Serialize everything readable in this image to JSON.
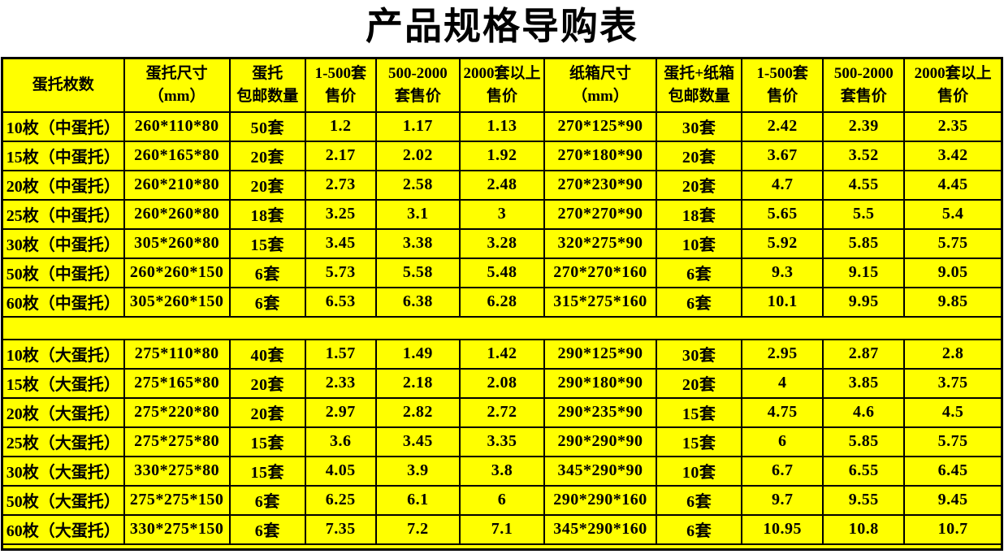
{
  "title": "产品规格导购表",
  "colors": {
    "cell_bg": "#ffff00",
    "border": "#000000",
    "row_label": "#ff0000",
    "text": "#000000",
    "page_bg": "#ffffff"
  },
  "table": {
    "headers": [
      "蛋托枚数",
      "蛋托尺寸\n（mm）",
      "蛋托\n包邮数量",
      "1-500套\n售价",
      "500-2000\n套售价",
      "2000套以上\n售价",
      "纸箱尺寸\n（mm）",
      "蛋托+纸箱\n包邮数量",
      "1-500套\n售价",
      "500-2000\n套售价",
      "2000套以上\n售价"
    ],
    "groups": [
      {
        "rows": [
          [
            "10枚（中蛋托）",
            "260*110*80",
            "50套",
            "1.2",
            "1.17",
            "1.13",
            "270*125*90",
            "30套",
            "2.42",
            "2.39",
            "2.35"
          ],
          [
            "15枚（中蛋托）",
            "260*165*80",
            "20套",
            "2.17",
            "2.02",
            "1.92",
            "270*180*90",
            "20套",
            "3.67",
            "3.52",
            "3.42"
          ],
          [
            "20枚（中蛋托）",
            "260*210*80",
            "20套",
            "2.73",
            "2.58",
            "2.48",
            "270*230*90",
            "20套",
            "4.7",
            "4.55",
            "4.45"
          ],
          [
            "25枚（中蛋托）",
            "260*260*80",
            "18套",
            "3.25",
            "3.1",
            "3",
            "270*270*90",
            "18套",
            "5.65",
            "5.5",
            "5.4"
          ],
          [
            "30枚（中蛋托）",
            "305*260*80",
            "15套",
            "3.45",
            "3.38",
            "3.28",
            "320*275*90",
            "10套",
            "5.92",
            "5.85",
            "5.75"
          ],
          [
            "50枚（中蛋托）",
            "260*260*150",
            "6套",
            "5.73",
            "5.58",
            "5.48",
            "270*270*160",
            "6套",
            "9.3",
            "9.15",
            "9.05"
          ],
          [
            "60枚（中蛋托）",
            "305*260*150",
            "6套",
            "6.53",
            "6.38",
            "6.28",
            "315*275*160",
            "6套",
            "10.1",
            "9.95",
            "9.85"
          ]
        ]
      },
      {
        "rows": [
          [
            "10枚（大蛋托）",
            "275*110*80",
            "40套",
            "1.57",
            "1.49",
            "1.42",
            "290*125*90",
            "30套",
            "2.95",
            "2.87",
            "2.8"
          ],
          [
            "15枚（大蛋托）",
            "275*165*80",
            "20套",
            "2.33",
            "2.18",
            "2.08",
            "290*180*90",
            "20套",
            "4",
            "3.85",
            "3.75"
          ],
          [
            "20枚（大蛋托）",
            "275*220*80",
            "20套",
            "2.97",
            "2.82",
            "2.72",
            "290*235*90",
            "15套",
            "4.75",
            "4.6",
            "4.5"
          ],
          [
            "25枚（大蛋托）",
            "275*275*80",
            "15套",
            "3.6",
            "3.45",
            "3.35",
            "290*290*90",
            "15套",
            "6",
            "5.85",
            "5.75"
          ],
          [
            "30枚（大蛋托）",
            "330*275*80",
            "15套",
            "4.05",
            "3.9",
            "3.8",
            "345*290*90",
            "10套",
            "6.7",
            "6.55",
            "6.45"
          ],
          [
            "50枚（大蛋托）",
            "275*275*150",
            "6套",
            "6.25",
            "6.1",
            "6",
            "290*290*160",
            "6套",
            "9.7",
            "9.55",
            "9.45"
          ],
          [
            "60枚（大蛋托）",
            "330*275*150",
            "6套",
            "7.35",
            "7.2",
            "7.1",
            "345*290*160",
            "6套",
            "10.95",
            "10.8",
            "10.7"
          ]
        ]
      }
    ]
  }
}
